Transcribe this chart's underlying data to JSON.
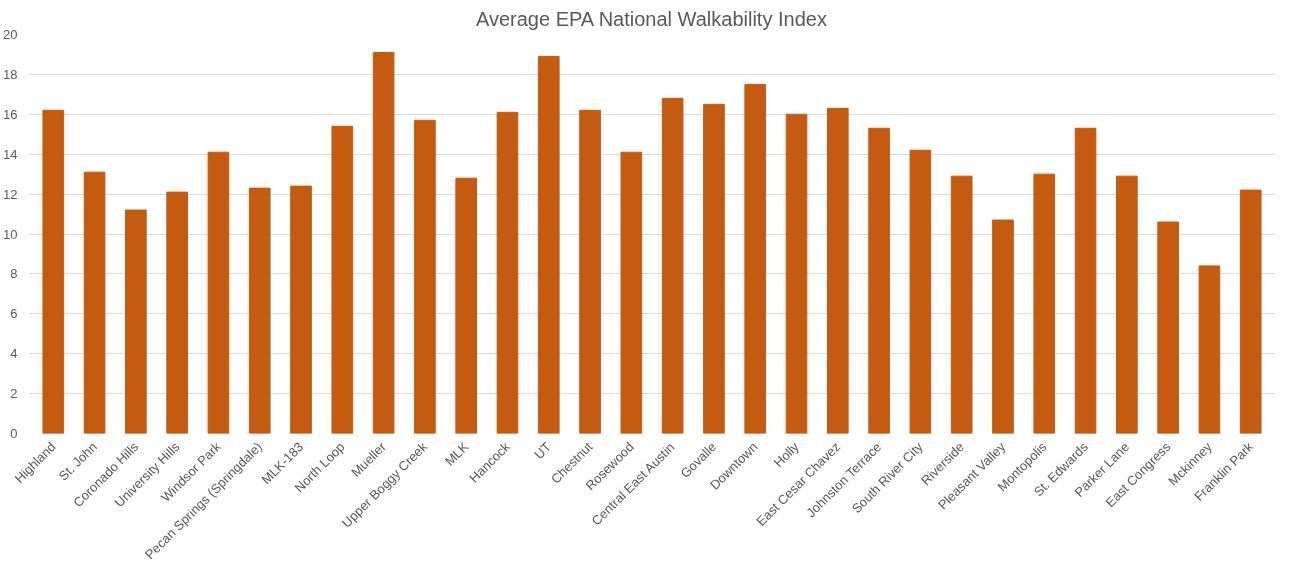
{
  "chart_data": {
    "type": "bar",
    "title": "Average EPA National Walkability Index",
    "categories": [
      "Highland",
      "St. John",
      "Coronado Hills",
      "University Hills",
      "Windsor Park",
      "Pecan Springs (Springdale)",
      "MLK-183",
      "North Loop",
      "Mueller",
      "Upper Boggy Creek",
      "MLK",
      "Hancock",
      "UT",
      "Chestnut",
      "Rosewood",
      "Central East Austin",
      "Govalle",
      "Downtown",
      "Holly",
      "East Cesar Chavez",
      "Johnston Terrace",
      "South River City",
      "Riverside",
      "Pleasant Valley",
      "Montopolis",
      "St. Edwards",
      "Parker Lane",
      "East Congress",
      "Mckinney",
      "Franklin Park"
    ],
    "values": [
      16.2,
      13.1,
      11.2,
      12.1,
      14.1,
      12.3,
      12.4,
      15.4,
      19.1,
      15.7,
      12.8,
      16.1,
      18.9,
      16.2,
      14.1,
      16.8,
      16.5,
      17.5,
      16.0,
      16.3,
      15.3,
      14.2,
      12.9,
      10.7,
      13.0,
      15.3,
      12.9,
      10.6,
      8.4,
      12.2
    ],
    "color": "#c55a11",
    "ylim": [
      0,
      20
    ],
    "yticks": [
      0,
      2,
      4,
      6,
      8,
      10,
      12,
      14,
      16,
      18,
      20
    ],
    "grid": "y"
  }
}
